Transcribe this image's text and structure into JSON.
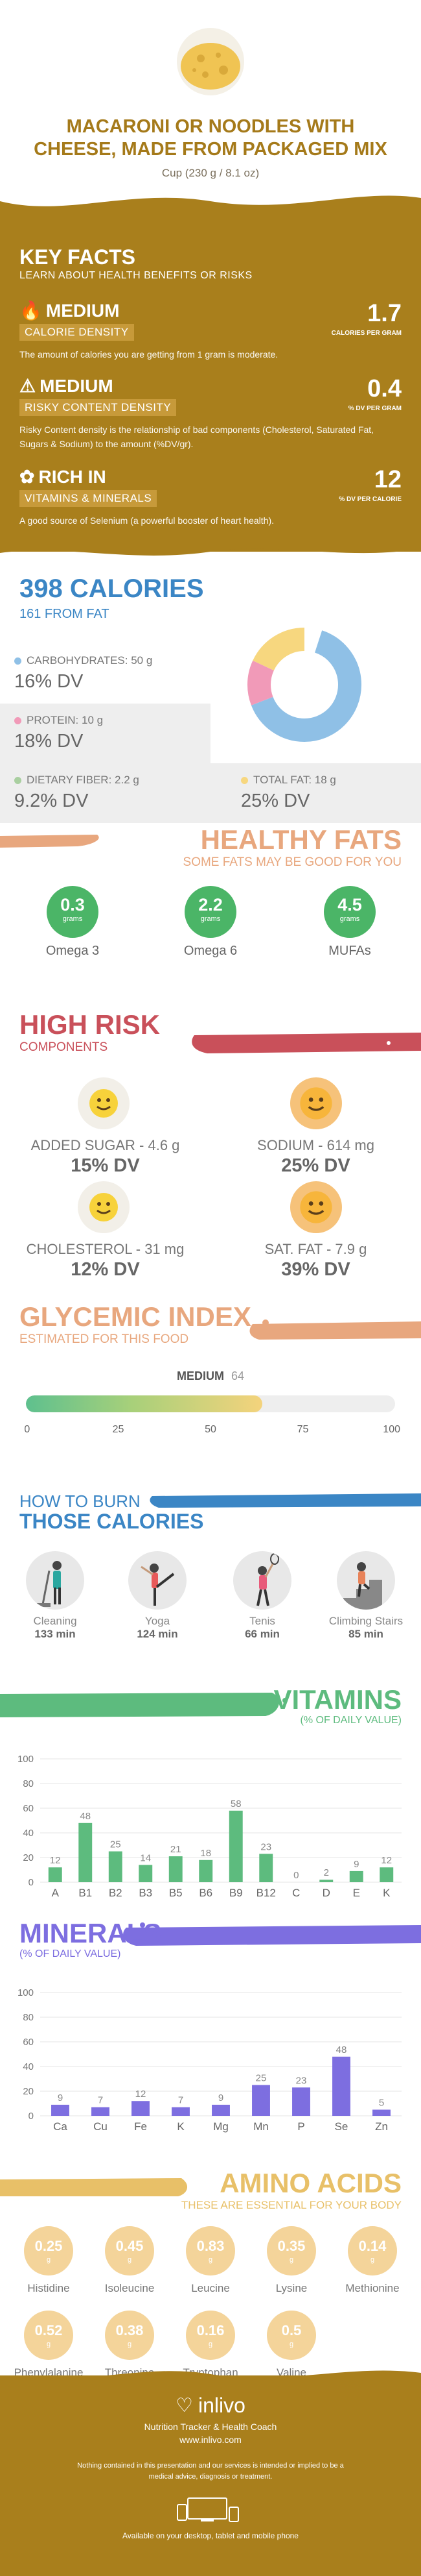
{
  "header": {
    "title": "MACARONI OR NOODLES WITH CHEESE, MADE FROM PACKAGED MIX",
    "serving": "Cup (230 g / 8.1 oz)"
  },
  "key_facts": {
    "title": "KEY FACTS",
    "subtitle": "LEARN ABOUT HEALTH BENEFITS OR RISKS",
    "items": [
      {
        "level": "MEDIUM",
        "label": "CALORIE DENSITY",
        "value": "1.7",
        "unit": "CALORIES PER GRAM",
        "icon": "flame-icon",
        "desc": "The amount of calories you are getting from 1 gram is moderate."
      },
      {
        "level": "MEDIUM",
        "label": "RISKY CONTENT DENSITY",
        "value": "0.4",
        "unit": "% DV PER GRAM",
        "icon": "warning-icon",
        "desc": "Risky Content density is the relationship of bad components (Cholesterol, Saturated Fat, Sugars & Sodium) to the amount (%DV/gr)."
      },
      {
        "level": "RICH  IN",
        "label": "VITAMINS & MINERALS",
        "value": "12",
        "unit": "% DV PER CALORIE",
        "icon": "leaf-icon",
        "desc": "A good source of Selenium (a powerful booster of heart health)."
      }
    ]
  },
  "calories": {
    "title": "398 CALORIES",
    "from_fat": "161 FROM FAT",
    "nutrients": [
      {
        "label": "CARBOHYDRATES: 50 g",
        "dv": "16% DV",
        "color": "#8fc0e6"
      },
      {
        "label": "PROTEIN: 10 g",
        "dv": "18% DV",
        "color": "#f19ab8"
      },
      {
        "label": "DIETARY FIBER: 2.2 g",
        "dv": "9.2% DV",
        "color": "#a9cfa0"
      },
      {
        "label": "TOTAL FAT: 18 g",
        "dv": "25% DV",
        "color": "#f7d77f"
      }
    ]
  },
  "chart_data": [
    {
      "type": "pie",
      "categories": [
        "CARBOHYDRATES",
        "PROTEIN",
        "TOTAL FAT"
      ],
      "values": [
        50,
        10,
        18
      ],
      "colors": [
        "#8fc0e6",
        "#f19ab8",
        "#f7d77f"
      ]
    },
    {
      "type": "bar",
      "title": "VITAMINS",
      "subtitle": "(% OF DAILY VALUE)",
      "categories": [
        "A",
        "B1",
        "B2",
        "B3",
        "B5",
        "B6",
        "B9",
        "B12",
        "C",
        "D",
        "E",
        "K"
      ],
      "values": [
        12,
        48,
        25,
        14,
        21,
        18,
        58,
        23,
        0,
        2,
        9,
        12
      ],
      "ylim": [
        0,
        100
      ],
      "yticks": [
        0,
        20,
        40,
        60,
        80,
        100
      ],
      "color": "#5dbb7e"
    },
    {
      "type": "bar",
      "title": "MINERALS",
      "subtitle": "(% OF DAILY VALUE)",
      "categories": [
        "Ca",
        "Cu",
        "Fe",
        "K",
        "Mg",
        "Mn",
        "P",
        "Se",
        "Zn"
      ],
      "values": [
        9,
        7,
        12,
        7,
        9,
        25,
        23,
        48,
        5
      ],
      "ylim": [
        0,
        100
      ],
      "yticks": [
        0,
        20,
        40,
        60,
        80,
        100
      ],
      "color": "#7d6ee0"
    }
  ],
  "healthy_fats": {
    "title": "HEALTHY FATS",
    "subtitle": "SOME FATS MAY BE GOOD FOR YOU",
    "unit": "grams",
    "items": [
      {
        "value": "0.3",
        "name": "Omega 3"
      },
      {
        "value": "2.2",
        "name": "Omega 6"
      },
      {
        "value": "4.5",
        "name": "MUFAs"
      }
    ]
  },
  "high_risk": {
    "title": "HIGH RISK",
    "subtitle": "COMPONENTS",
    "items": [
      {
        "label": "ADDED SUGAR - 4.6 g",
        "dv": "15% DV",
        "level": "low"
      },
      {
        "label": "SODIUM - 614 mg",
        "dv": "25% DV",
        "level": "high"
      },
      {
        "label": "CHOLESTEROL - 31 mg",
        "dv": "12% DV",
        "level": "low"
      },
      {
        "label": "SAT. FAT - 7.9 g",
        "dv": "39% DV",
        "level": "high"
      }
    ]
  },
  "glycemic": {
    "title": "GLYCEMIC INDEX",
    "subtitle": "ESTIMATED FOR THIS FOOD",
    "level": "MEDIUM",
    "value": "64",
    "fraction": 0.64,
    "ticks": [
      "0",
      "25",
      "50",
      "75",
      "100"
    ]
  },
  "burn": {
    "title_line1": "HOW TO BURN",
    "title_line2": "THOSE CALORIES",
    "items": [
      {
        "name": "Cleaning",
        "minutes": "133 min",
        "icon": "cleaning-icon"
      },
      {
        "name": "Yoga",
        "minutes": "124 min",
        "icon": "yoga-icon"
      },
      {
        "name": "Tenis",
        "minutes": "66 min",
        "icon": "tennis-icon"
      },
      {
        "name": "Climbing Stairs",
        "minutes": "85 min",
        "icon": "stairs-icon"
      }
    ]
  },
  "amino": {
    "title": "AMINO ACIDS",
    "subtitle": "THESE ARE ESSENTIAL FOR YOUR BODY",
    "unit": "g",
    "items": [
      {
        "value": "0.25",
        "name": "Histidine"
      },
      {
        "value": "0.45",
        "name": "Isoleucine"
      },
      {
        "value": "0.83",
        "name": "Leucine"
      },
      {
        "value": "0.35",
        "name": "Lysine"
      },
      {
        "value": "0.14",
        "name": "Methionine"
      },
      {
        "value": "0.52",
        "name": "Phenylalanine"
      },
      {
        "value": "0.38",
        "name": "Threonine"
      },
      {
        "value": "0.16",
        "name": "Tryptophan"
      },
      {
        "value": "0.5",
        "name": "Valine"
      }
    ]
  },
  "footer": {
    "brand": "inlivo",
    "tagline": "Nutrition Tracker & Health Coach",
    "url": "www.inlivo.com",
    "disclaimer": "Nothing contained in this presentation and our services is intended or implied to be a medical advice, diagnosis or treatment.",
    "devices_text": "Available on your desktop, tablet and mobile phone"
  },
  "colors": {
    "gold": "#a97f1c",
    "blue": "#3b86c5",
    "green": "#5dbb7e",
    "red": "#c9505a",
    "orange": "#e8a77e",
    "purple": "#7d6ee0",
    "amber": "#e8c068"
  }
}
